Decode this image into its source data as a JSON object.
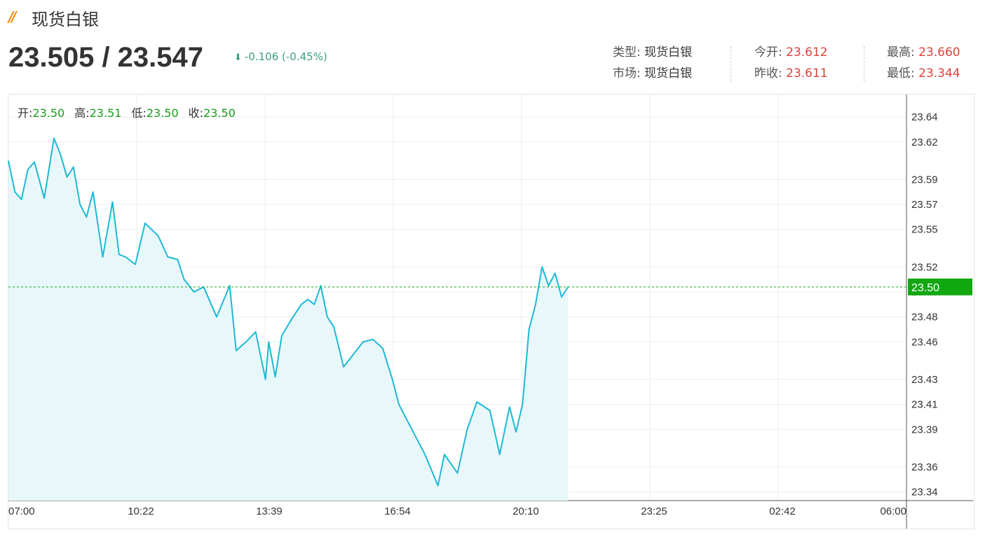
{
  "header": {
    "logo_mark": "//",
    "title": "现货白银",
    "price": "23.505 / 23.547",
    "change": "-0.106 (-0.45%)"
  },
  "info": {
    "type_label": "类型:",
    "type_value": "现货白银",
    "market_label": "市场:",
    "market_value": "现货白银",
    "open_label": "今开:",
    "open_value": "23.612",
    "prev_close_label": "昨收:",
    "prev_close_value": "23.611",
    "high_label": "最高:",
    "high_value": "23.660",
    "low_label": "最低:",
    "low_value": "23.344"
  },
  "ohlc": {
    "open_label": "开:",
    "open": "23.50",
    "high_label": "高:",
    "high": "23.51",
    "low_label": "低:",
    "low": "23.50",
    "close_label": "收:",
    "close": "23.50"
  },
  "colors": {
    "line": "#1cb9d4",
    "fill": "#e8f8fa",
    "up_down_red": "#e0413a",
    "change_green": "#3aa07a",
    "last_price_tag": "#12a812"
  },
  "chart_data": {
    "type": "area",
    "x_tick_labels": [
      "07:00",
      "10:22",
      "13:39",
      "16:54",
      "20:10",
      "23:25",
      "02:42",
      "06:00"
    ],
    "y_tick_labels": [
      "23.64",
      "23.62",
      "23.59",
      "23.57",
      "23.55",
      "23.52",
      "23.50",
      "23.48",
      "23.46",
      "23.43",
      "23.41",
      "23.39",
      "23.36",
      "23.34"
    ],
    "ylim": [
      23.333,
      23.658
    ],
    "x_range_minutes": [
      0,
      1380
    ],
    "last_price_label": "23.50",
    "last_price": 23.504,
    "grid": true,
    "series": [
      {
        "values_x_minutes": [
          0,
          10,
          20,
          30,
          40,
          55,
          70,
          80,
          90,
          100,
          110,
          120,
          130,
          145,
          160,
          170,
          180,
          195,
          210,
          230,
          245,
          260,
          270,
          285,
          300,
          320,
          340,
          350,
          365,
          380,
          395,
          400,
          410,
          420,
          435,
          450,
          460,
          470,
          480,
          490,
          500,
          515,
          530,
          545,
          560,
          575,
          590,
          600,
          610,
          620,
          640,
          660,
          670,
          690,
          705,
          720,
          740,
          755,
          770,
          780,
          790,
          800,
          810,
          820,
          830,
          840,
          850,
          860
        ],
        "values": [
          23.605,
          23.58,
          23.574,
          23.598,
          23.604,
          23.575,
          23.623,
          23.61,
          23.592,
          23.6,
          23.57,
          23.56,
          23.58,
          23.528,
          23.572,
          23.53,
          23.528,
          23.522,
          23.555,
          23.545,
          23.528,
          23.526,
          23.51,
          23.5,
          23.504,
          23.48,
          23.505,
          23.453,
          23.46,
          23.468,
          23.43,
          23.46,
          23.432,
          23.465,
          23.478,
          23.49,
          23.494,
          23.49,
          23.505,
          23.48,
          23.472,
          23.44,
          23.45,
          23.46,
          23.462,
          23.455,
          23.43,
          23.41,
          23.4,
          23.39,
          23.37,
          23.345,
          23.37,
          23.355,
          23.39,
          23.412,
          23.405,
          23.37,
          23.408,
          23.388,
          23.41,
          23.47,
          23.49,
          23.52,
          23.505,
          23.515,
          23.496,
          23.504
        ]
      }
    ]
  }
}
